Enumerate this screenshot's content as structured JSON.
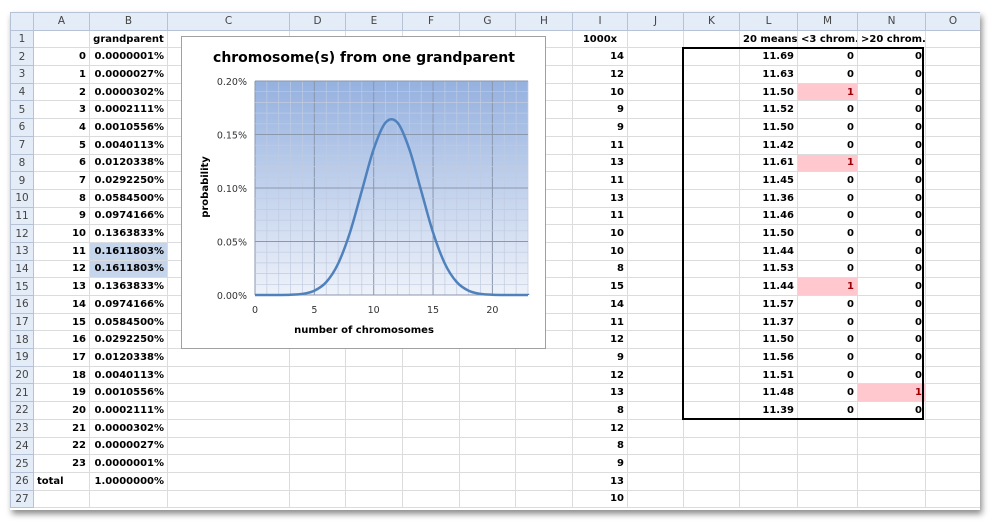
{
  "columns": [
    "",
    "A",
    "B",
    "C",
    "D",
    "E",
    "F",
    "G",
    "H",
    "I",
    "J",
    "K",
    "L",
    "M",
    "N",
    "O"
  ],
  "header_row": {
    "B": "grandparent",
    "I": "1000x",
    "L": "20 means",
    "M": "<3 chrom.",
    "N": ">20 chrom."
  },
  "col_a": [
    "0",
    "1",
    "2",
    "3",
    "4",
    "5",
    "6",
    "7",
    "8",
    "9",
    "10",
    "11",
    "12",
    "13",
    "14",
    "15",
    "16",
    "17",
    "18",
    "19",
    "20",
    "21",
    "22",
    "23"
  ],
  "col_b": [
    "0.0000001%",
    "0.0000027%",
    "0.0000302%",
    "0.0002111%",
    "0.0010556%",
    "0.0040113%",
    "0.0120338%",
    "0.0292250%",
    "0.0584500%",
    "0.0974166%",
    "0.1363833%",
    "0.1611803%",
    "0.1611803%",
    "0.1363833%",
    "0.0974166%",
    "0.0584500%",
    "0.0292250%",
    "0.0120338%",
    "0.0040113%",
    "0.0010556%",
    "0.0002111%",
    "0.0000302%",
    "0.0000027%",
    "0.0000001%"
  ],
  "total_label": "total",
  "total_value": "1.0000000%",
  "col_i": [
    "14",
    "12",
    "10",
    "9",
    "9",
    "11",
    "13",
    "11",
    "13",
    "11",
    "10",
    "10",
    "8",
    "15",
    "14",
    "11",
    "12",
    "9",
    "12",
    "13",
    "8",
    "12",
    "8",
    "9",
    "13",
    "10"
  ],
  "col_l": [
    "11.69",
    "11.63",
    "11.50",
    "11.52",
    "11.50",
    "11.42",
    "11.61",
    "11.45",
    "11.36",
    "11.46",
    "11.50",
    "11.44",
    "11.53",
    "11.44",
    "11.57",
    "11.37",
    "11.50",
    "11.56",
    "11.51",
    "11.48",
    "11.39"
  ],
  "col_m": [
    "0",
    "0",
    "1",
    "0",
    "0",
    "0",
    "1",
    "0",
    "0",
    "0",
    "0",
    "0",
    "0",
    "1",
    "0",
    "0",
    "0",
    "0",
    "0",
    "0",
    "0"
  ],
  "col_n": [
    "0",
    "0",
    "0",
    "0",
    "0",
    "0",
    "0",
    "0",
    "0",
    "0",
    "0",
    "0",
    "0",
    "0",
    "0",
    "0",
    "0",
    "0",
    "0",
    "1",
    "0"
  ],
  "selected_rows": [
    13,
    14
  ],
  "colors": {
    "highlight_fill": "#ffc7ce",
    "highlight_text": "#9c0006",
    "selection": "#c5d6ec",
    "series": "#4f81bd"
  },
  "chart_data": {
    "type": "line",
    "title": "chromosome(s) from one grandparent",
    "xlabel": "number of chromosomes",
    "ylabel": "probability",
    "x": [
      0,
      1,
      2,
      3,
      4,
      5,
      6,
      7,
      8,
      9,
      10,
      11,
      12,
      13,
      14,
      15,
      16,
      17,
      18,
      19,
      20,
      21,
      22,
      23
    ],
    "y": [
      1e-07,
      2.7e-06,
      3.02e-05,
      0.0002111,
      0.0010556,
      0.0040113,
      0.0120338,
      0.029225,
      0.05845,
      0.0974166,
      0.1363833,
      0.1611803,
      0.1611803,
      0.1363833,
      0.0974166,
      0.05845,
      0.029225,
      0.0120338,
      0.0040113,
      0.0010556,
      0.0002111,
      3.02e-05,
      2.7e-06,
      1e-07
    ],
    "y_unit": "%",
    "xlim": [
      0,
      23
    ],
    "ylim": [
      0,
      0.2
    ],
    "xticks": [
      "0",
      "5",
      "10",
      "15",
      "20"
    ],
    "yticks": [
      "0.00%",
      "0.05%",
      "0.10%",
      "0.15%",
      "0.20%"
    ],
    "grid": true,
    "smoothed": true,
    "legend": "none"
  }
}
